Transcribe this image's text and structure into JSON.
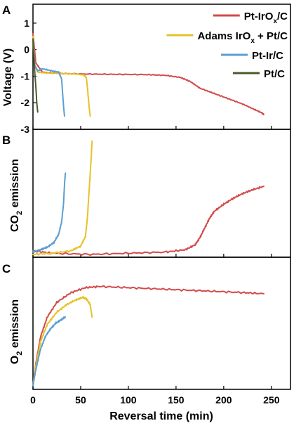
{
  "chart_data": [
    {
      "panel_letter": "A",
      "type": "line",
      "ylabel": "Voltage (V)",
      "ylim": [
        -3,
        1.5
      ],
      "yticks": [
        -3,
        -2,
        -1,
        0,
        1
      ],
      "xlim": [
        0,
        270
      ],
      "legend_position": "top-right",
      "legend": [
        {
          "prefix": "Pt-IrO",
          "sub": "x",
          "suffix": "/C",
          "color": "#d24b4b"
        },
        {
          "prefix": "Adams IrO",
          "sub": "x",
          "suffix": " + Pt/C",
          "color": "#e6c22a"
        },
        {
          "prefix": "Pt-Ir/C",
          "sub": "",
          "suffix": "",
          "color": "#5a9fd4"
        },
        {
          "prefix": "Pt/C",
          "sub": "",
          "suffix": "",
          "color": "#4a5a2a"
        }
      ],
      "series": [
        {
          "key": "pt_irox",
          "color": "#d24b4b",
          "x": [
            0,
            3,
            10,
            30,
            60,
            90,
            120,
            140,
            155,
            165,
            175,
            190,
            205,
            220,
            232,
            240,
            242
          ],
          "y": [
            0.6,
            -0.5,
            -0.85,
            -0.9,
            -0.92,
            -0.93,
            -0.94,
            -0.97,
            -1.05,
            -1.2,
            -1.45,
            -1.65,
            -1.85,
            -2.05,
            -2.25,
            -2.38,
            -2.45
          ]
        },
        {
          "key": "adams",
          "color": "#e6c22a",
          "x": [
            0,
            2,
            5,
            15,
            30,
            45,
            53,
            56,
            57,
            58,
            59,
            60
          ],
          "y": [
            0.5,
            -0.6,
            -0.85,
            -0.88,
            -0.9,
            -0.92,
            -0.95,
            -1.05,
            -1.4,
            -1.8,
            -2.2,
            -2.5
          ]
        },
        {
          "key": "pt_ir",
          "color": "#5a9fd4",
          "x": [
            0,
            2,
            5,
            10,
            20,
            27,
            30,
            31,
            32,
            33
          ],
          "y": [
            0.3,
            -0.6,
            -0.8,
            -0.72,
            -0.8,
            -0.85,
            -1.1,
            -1.6,
            -2.1,
            -2.5
          ]
        },
        {
          "key": "pt_c",
          "color": "#4a5a2a",
          "x": [
            0,
            1,
            2,
            3,
            4,
            5
          ],
          "y": [
            0.4,
            -0.3,
            -0.9,
            -1.4,
            -2.0,
            -2.35
          ]
        }
      ]
    },
    {
      "panel_letter": "B",
      "type": "line",
      "ylabel_prefix": "CO",
      "ylabel_sub": "2",
      "ylabel_suffix": " emission",
      "ylim": [
        0,
        1
      ],
      "xlim": [
        0,
        270
      ],
      "series": [
        {
          "key": "pt_irox",
          "color": "#d24b4b",
          "x": [
            0,
            20,
            60,
            100,
            140,
            160,
            170,
            175,
            180,
            185,
            190,
            200,
            210,
            220,
            230,
            242
          ],
          "y": [
            0.03,
            0.01,
            0.0,
            0.01,
            0.02,
            0.04,
            0.08,
            0.14,
            0.22,
            0.3,
            0.36,
            0.42,
            0.47,
            0.51,
            0.54,
            0.57
          ]
        },
        {
          "key": "adams",
          "color": "#e6c22a",
          "x": [
            0,
            20,
            40,
            50,
            55,
            57,
            59,
            61,
            62
          ],
          "y": [
            0.0,
            0.01,
            0.03,
            0.07,
            0.15,
            0.3,
            0.55,
            0.8,
            0.95
          ]
        },
        {
          "key": "pt_ir",
          "color": "#5a9fd4",
          "x": [
            0,
            8,
            15,
            22,
            27,
            30,
            32,
            33,
            34
          ],
          "y": [
            0.02,
            0.04,
            0.06,
            0.1,
            0.17,
            0.27,
            0.42,
            0.58,
            0.68
          ]
        }
      ]
    },
    {
      "panel_letter": "C",
      "type": "line",
      "ylabel_prefix": "O",
      "ylabel_sub": "2",
      "ylabel_suffix": " emission",
      "ylim": [
        0,
        1
      ],
      "xlim": [
        0,
        270
      ],
      "xticks": [
        0,
        50,
        100,
        150,
        200,
        250
      ],
      "xlabel": "Reversal time (min)",
      "series": [
        {
          "key": "pt_irox",
          "color": "#d24b4b",
          "x": [
            0,
            3,
            8,
            15,
            25,
            40,
            55,
            70,
            100,
            130,
            160,
            190,
            220,
            242
          ],
          "y": [
            0.02,
            0.2,
            0.42,
            0.58,
            0.7,
            0.78,
            0.82,
            0.83,
            0.82,
            0.81,
            0.8,
            0.79,
            0.78,
            0.77
          ]
        },
        {
          "key": "adams",
          "color": "#e6c22a",
          "x": [
            0,
            3,
            8,
            15,
            25,
            35,
            45,
            52,
            56,
            60,
            62
          ],
          "y": [
            0.02,
            0.18,
            0.38,
            0.52,
            0.62,
            0.68,
            0.72,
            0.74,
            0.73,
            0.68,
            0.58
          ]
        },
        {
          "key": "pt_ir",
          "color": "#5a9fd4",
          "x": [
            0,
            3,
            8,
            13,
            18,
            24,
            30,
            34
          ],
          "y": [
            0.02,
            0.15,
            0.32,
            0.42,
            0.48,
            0.53,
            0.56,
            0.58
          ]
        }
      ]
    }
  ]
}
